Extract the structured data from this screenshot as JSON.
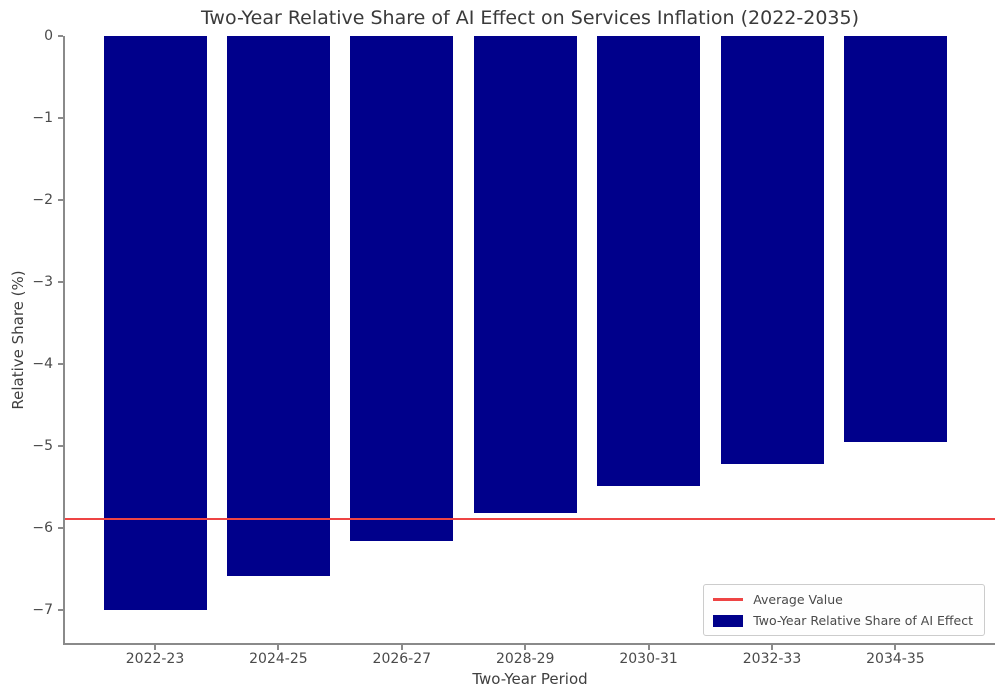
{
  "chart_data": {
    "type": "bar",
    "title": "Two-Year Relative Share of AI Effect on Services Inflation (2022-2035)",
    "xlabel": "Two-Year Period",
    "ylabel": "Relative Share (%)",
    "categories": [
      "2022-23",
      "2024-25",
      "2026-27",
      "2028-29",
      "2030-31",
      "2032-33",
      "2034-35"
    ],
    "series": [
      {
        "name": "Two-Year Relative Share of AI Effect",
        "color": "#00008b",
        "values": [
          -7.0,
          -6.58,
          -6.16,
          -5.81,
          -5.48,
          -5.22,
          -4.95
        ]
      }
    ],
    "average_line": {
      "label": "Average Value",
      "value": -5.89,
      "color": "#ee4444"
    },
    "ylim": [
      -7.4,
      0
    ],
    "yticks": [
      0,
      -1,
      -2,
      -3,
      -4,
      -5,
      -6,
      -7
    ],
    "grid": false,
    "legend": {
      "position": "lower-right",
      "entries": [
        {
          "label": "Average Value",
          "swatch": "line",
          "color": "#ee4444"
        },
        {
          "label": "Two-Year Relative Share of AI Effect",
          "swatch": "patch",
          "color": "#00008b"
        }
      ]
    }
  }
}
